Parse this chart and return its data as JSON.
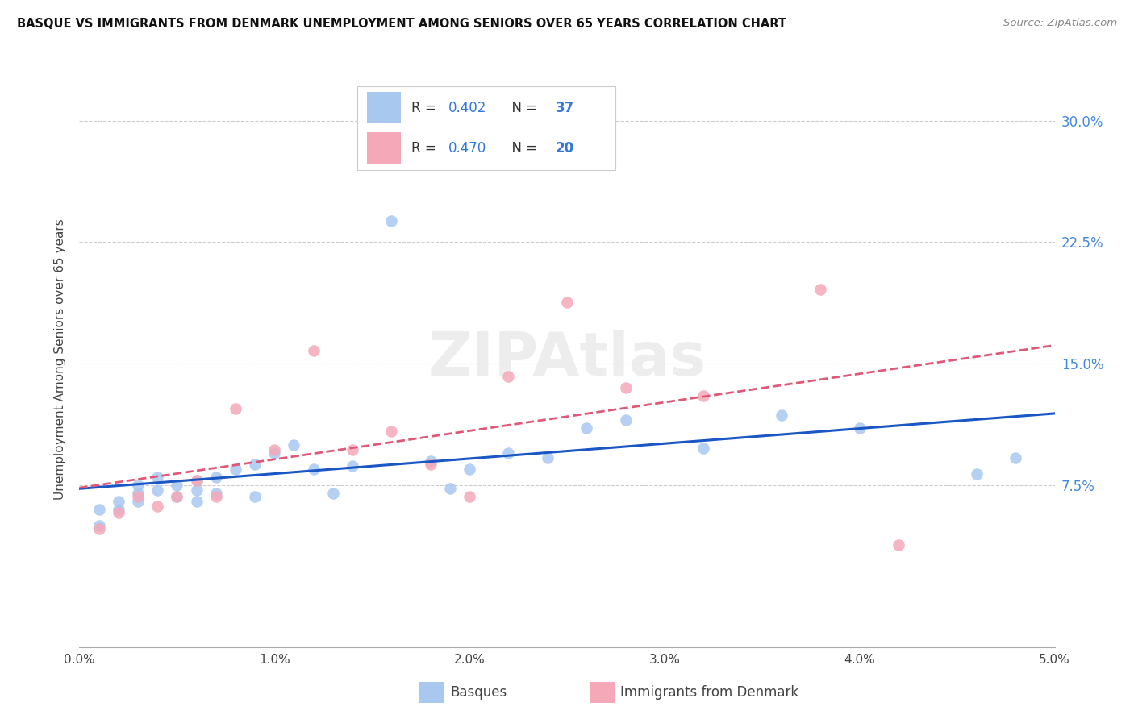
{
  "title": "BASQUE VS IMMIGRANTS FROM DENMARK UNEMPLOYMENT AMONG SENIORS OVER 65 YEARS CORRELATION CHART",
  "source": "Source: ZipAtlas.com",
  "ylabel": "Unemployment Among Seniors over 65 years",
  "legend_label1": "Basques",
  "legend_label2": "Immigrants from Denmark",
  "r1": 0.402,
  "n1": 37,
  "r2": 0.47,
  "n2": 20,
  "color_blue": "#A8C8F0",
  "color_pink": "#F4A8B8",
  "color_blue_line": "#1A56C4",
  "color_pink_line": "#E05878",
  "xlim": [
    0.0,
    0.05
  ],
  "ylim": [
    -0.025,
    0.33
  ],
  "ytick_vals": [
    0.075,
    0.15,
    0.225,
    0.3
  ],
  "ytick_labels": [
    "7.5%",
    "15.0%",
    "22.5%",
    "30.0%"
  ],
  "xtick_vals": [
    0.0,
    0.01,
    0.02,
    0.03,
    0.04,
    0.05
  ],
  "xtick_labels": [
    "0.0%",
    "1.0%",
    "2.0%",
    "3.0%",
    "4.0%",
    "5.0%"
  ],
  "basque_x": [
    0.001,
    0.001,
    0.002,
    0.002,
    0.003,
    0.003,
    0.003,
    0.004,
    0.004,
    0.005,
    0.005,
    0.006,
    0.006,
    0.006,
    0.007,
    0.007,
    0.008,
    0.009,
    0.009,
    0.01,
    0.011,
    0.012,
    0.013,
    0.014,
    0.016,
    0.018,
    0.019,
    0.02,
    0.022,
    0.024,
    0.026,
    0.028,
    0.032,
    0.036,
    0.04,
    0.046,
    0.048
  ],
  "basque_y": [
    0.05,
    0.06,
    0.06,
    0.065,
    0.07,
    0.065,
    0.075,
    0.072,
    0.08,
    0.068,
    0.075,
    0.072,
    0.078,
    0.065,
    0.08,
    0.07,
    0.085,
    0.088,
    0.068,
    0.095,
    0.1,
    0.085,
    0.07,
    0.087,
    0.238,
    0.09,
    0.073,
    0.085,
    0.095,
    0.092,
    0.11,
    0.115,
    0.098,
    0.118,
    0.11,
    0.082,
    0.092
  ],
  "denmark_x": [
    0.001,
    0.002,
    0.003,
    0.004,
    0.005,
    0.006,
    0.007,
    0.008,
    0.01,
    0.012,
    0.014,
    0.016,
    0.018,
    0.02,
    0.022,
    0.025,
    0.028,
    0.032,
    0.038,
    0.042
  ],
  "denmark_y": [
    0.048,
    0.058,
    0.068,
    0.062,
    0.068,
    0.078,
    0.068,
    0.122,
    0.097,
    0.158,
    0.097,
    0.108,
    0.088,
    0.068,
    0.142,
    0.188,
    0.135,
    0.13,
    0.196,
    0.038
  ]
}
